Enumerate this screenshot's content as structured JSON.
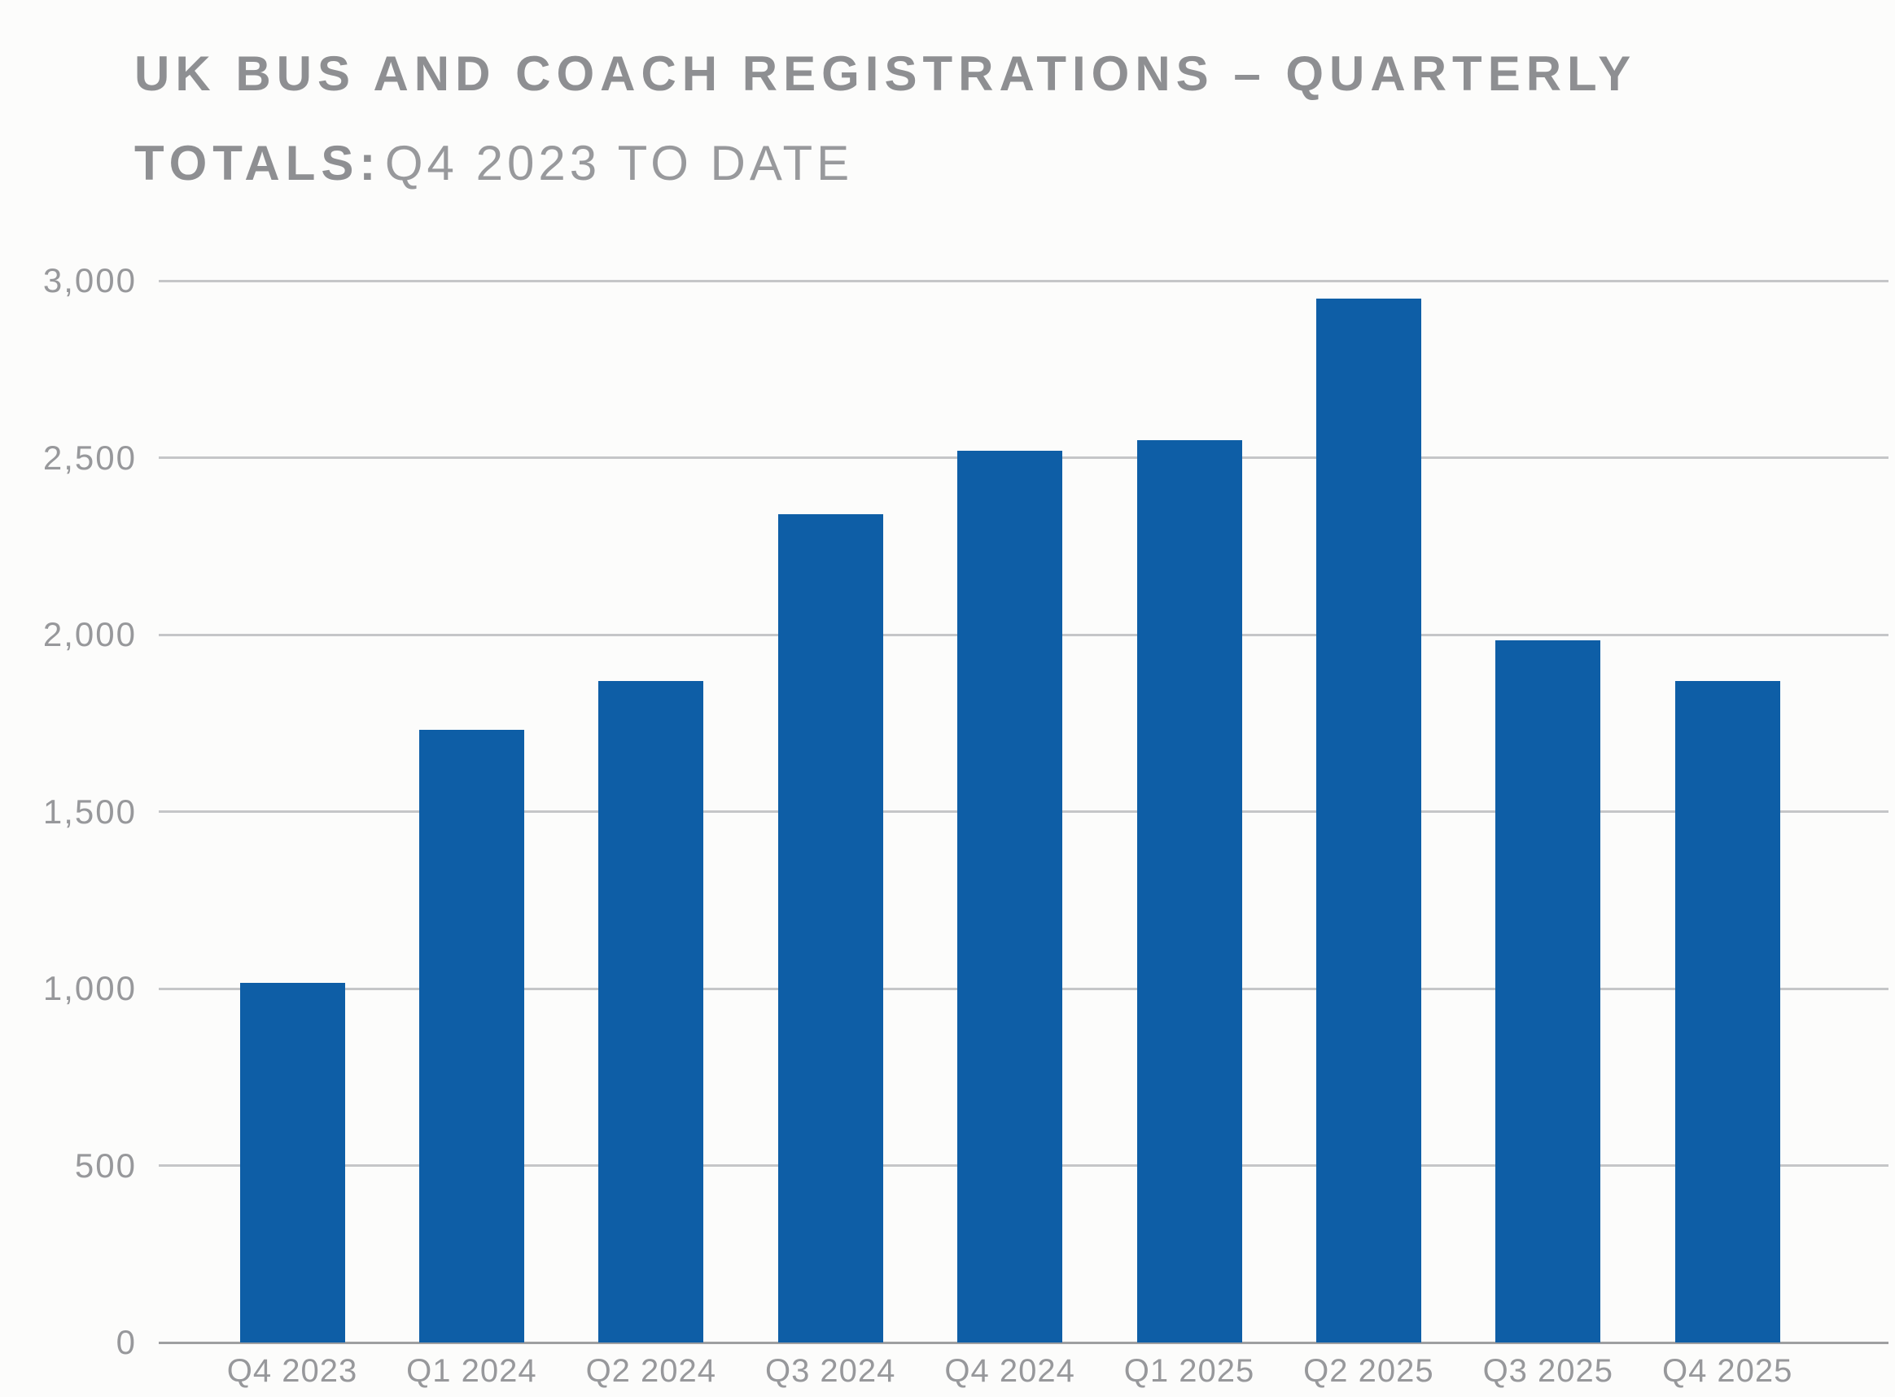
{
  "page": {
    "background": "#fcfcfb"
  },
  "title": {
    "line1": "UK BUS AND COACH REGISTRATIONS – QUARTERLY",
    "line2_bold": "TOTALS:",
    "line2_regular": "Q4 2023 TO DATE"
  },
  "colors": {
    "bar": "#0e5ea6",
    "title_bold": "#8e8f92",
    "title_regular": "#98999c",
    "tick_label": "#97989b",
    "gridline": "#c5c6c8",
    "axis_line": "#9e9fa1"
  },
  "chart_data": {
    "type": "bar",
    "title": "UK BUS AND COACH REGISTRATIONS – QUARTERLY TOTALS: Q4 2023 TO DATE",
    "categories": [
      "Q4 2023",
      "Q1 2024",
      "Q2 2024",
      "Q3 2024",
      "Q4 2024",
      "Q1 2025",
      "Q2 2025",
      "Q3 2025",
      "Q4 2025"
    ],
    "values": [
      1015,
      1730,
      1870,
      2340,
      2520,
      2550,
      2950,
      1985,
      1870
    ],
    "xlabel": "",
    "ylabel": "",
    "ylim": [
      0,
      3000
    ],
    "ytick_interval": 500,
    "ytick_labels": [
      "0",
      "500",
      "1,000",
      "1,500",
      "2,000",
      "2,500",
      "3,000"
    ],
    "grid": true,
    "legend_position": "none",
    "bar_color": "#0e5ea6"
  }
}
